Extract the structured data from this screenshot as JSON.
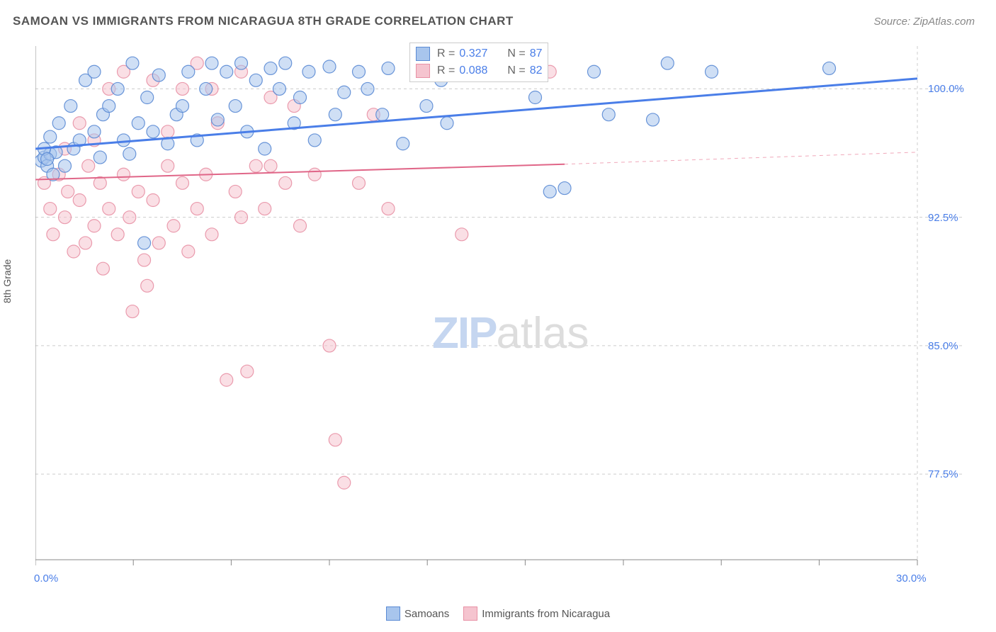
{
  "title": "SAMOAN VS IMMIGRANTS FROM NICARAGUA 8TH GRADE CORRELATION CHART",
  "source": "Source: ZipAtlas.com",
  "y_axis_label": "8th Grade",
  "watermark_zip": "ZIP",
  "watermark_atlas": "atlas",
  "chart": {
    "type": "scatter",
    "xlim": [
      0,
      30
    ],
    "ylim": [
      72.5,
      102.5
    ],
    "x_min_label": "0.0%",
    "x_max_label": "30.0%",
    "y_grid_values": [
      77.5,
      85.0,
      92.5,
      100.0
    ],
    "y_grid_labels": [
      "77.5%",
      "85.0%",
      "92.5%",
      "100.0%"
    ],
    "x_tick_positions": [
      0,
      3.33,
      6.66,
      10,
      13.33,
      16.66,
      20,
      23.33,
      26.66,
      30
    ],
    "background_color": "#ffffff",
    "grid_color": "#cccccc",
    "axis_color": "#888888",
    "marker_radius": 9,
    "marker_opacity": 0.55,
    "series": [
      {
        "name": "Samoans",
        "fill": "#a8c5ed",
        "stroke": "#5a8ad4",
        "regression": {
          "x1": 0,
          "y1": 96.5,
          "x2": 30,
          "y2": 100.6,
          "stroke": "#4a7ee8",
          "width": 3
        },
        "R": "0.327",
        "N": "87",
        "points": [
          [
            0.2,
            95.8
          ],
          [
            0.3,
            96.0
          ],
          [
            0.4,
            95.5
          ],
          [
            0.5,
            96.2
          ],
          [
            0.6,
            95.0
          ],
          [
            0.7,
            96.3
          ],
          [
            0.3,
            96.5
          ],
          [
            0.4,
            95.9
          ],
          [
            0.5,
            97.2
          ],
          [
            0.8,
            98.0
          ],
          [
            1.0,
            95.5
          ],
          [
            1.2,
            99.0
          ],
          [
            1.3,
            96.5
          ],
          [
            1.5,
            97.0
          ],
          [
            1.7,
            100.5
          ],
          [
            2.0,
            97.5
          ],
          [
            2.0,
            101.0
          ],
          [
            2.2,
            96.0
          ],
          [
            2.3,
            98.5
          ],
          [
            2.5,
            99.0
          ],
          [
            2.8,
            100.0
          ],
          [
            3.0,
            97.0
          ],
          [
            3.2,
            96.2
          ],
          [
            3.3,
            101.5
          ],
          [
            3.5,
            98.0
          ],
          [
            3.7,
            91.0
          ],
          [
            3.8,
            99.5
          ],
          [
            4.0,
            97.5
          ],
          [
            4.2,
            100.8
          ],
          [
            4.5,
            96.8
          ],
          [
            4.8,
            98.5
          ],
          [
            5.0,
            99.0
          ],
          [
            5.2,
            101.0
          ],
          [
            5.5,
            97.0
          ],
          [
            5.8,
            100.0
          ],
          [
            6.0,
            101.5
          ],
          [
            6.2,
            98.2
          ],
          [
            6.5,
            101.0
          ],
          [
            6.8,
            99.0
          ],
          [
            7.0,
            101.5
          ],
          [
            7.2,
            97.5
          ],
          [
            7.5,
            100.5
          ],
          [
            7.8,
            96.5
          ],
          [
            8.0,
            101.2
          ],
          [
            8.3,
            100.0
          ],
          [
            8.5,
            101.5
          ],
          [
            8.8,
            98.0
          ],
          [
            9.0,
            99.5
          ],
          [
            9.3,
            101.0
          ],
          [
            9.5,
            97.0
          ],
          [
            10.0,
            101.3
          ],
          [
            10.2,
            98.5
          ],
          [
            10.5,
            99.8
          ],
          [
            11.0,
            101.0
          ],
          [
            11.3,
            100.0
          ],
          [
            11.8,
            98.5
          ],
          [
            12.0,
            101.2
          ],
          [
            12.5,
            96.8
          ],
          [
            13.0,
            101.0
          ],
          [
            13.3,
            99.0
          ],
          [
            13.8,
            100.5
          ],
          [
            14.0,
            98.0
          ],
          [
            17.0,
            99.5
          ],
          [
            17.5,
            94.0
          ],
          [
            18.0,
            94.2
          ],
          [
            19.0,
            101.0
          ],
          [
            19.5,
            98.5
          ],
          [
            21.0,
            98.2
          ],
          [
            21.5,
            101.5
          ],
          [
            23.0,
            101.0
          ],
          [
            27.0,
            101.2
          ]
        ]
      },
      {
        "name": "Immigrants from Nicaragua",
        "fill": "#f5c4cf",
        "stroke": "#e891a5",
        "regression": {
          "x1": 0,
          "y1": 94.7,
          "x2": 18,
          "y2": 95.6,
          "stroke": "#e06688",
          "width": 2
        },
        "regression_extend": {
          "x1": 18,
          "y1": 95.6,
          "x2": 30,
          "y2": 96.3,
          "stroke": "#f0a8ba",
          "width": 1,
          "dash": "5,5"
        },
        "R": "0.088",
        "N": "82",
        "points": [
          [
            0.3,
            94.5
          ],
          [
            0.5,
            93.0
          ],
          [
            0.6,
            91.5
          ],
          [
            0.8,
            95.0
          ],
          [
            1.0,
            92.5
          ],
          [
            1.1,
            94.0
          ],
          [
            1.3,
            90.5
          ],
          [
            1.5,
            93.5
          ],
          [
            1.7,
            91.0
          ],
          [
            1.8,
            95.5
          ],
          [
            2.0,
            92.0
          ],
          [
            2.2,
            94.5
          ],
          [
            2.3,
            89.5
          ],
          [
            2.5,
            93.0
          ],
          [
            2.8,
            91.5
          ],
          [
            3.0,
            95.0
          ],
          [
            3.2,
            92.5
          ],
          [
            3.3,
            87.0
          ],
          [
            3.5,
            94.0
          ],
          [
            3.7,
            90.0
          ],
          [
            3.8,
            88.5
          ],
          [
            4.0,
            93.5
          ],
          [
            4.2,
            91.0
          ],
          [
            4.5,
            95.5
          ],
          [
            4.7,
            92.0
          ],
          [
            5.0,
            94.5
          ],
          [
            5.2,
            90.5
          ],
          [
            5.5,
            93.0
          ],
          [
            5.8,
            95.0
          ],
          [
            6.0,
            91.5
          ],
          [
            6.2,
            98.0
          ],
          [
            6.5,
            83.0
          ],
          [
            6.8,
            94.0
          ],
          [
            7.0,
            92.5
          ],
          [
            7.2,
            83.5
          ],
          [
            7.5,
            95.5
          ],
          [
            7.8,
            93.0
          ],
          [
            8.0,
            99.5
          ],
          [
            8.5,
            94.5
          ],
          [
            8.8,
            99.0
          ],
          [
            9.0,
            92.0
          ],
          [
            9.5,
            95.0
          ],
          [
            10.0,
            85.0
          ],
          [
            10.2,
            79.5
          ],
          [
            10.5,
            77.0
          ],
          [
            11.0,
            94.5
          ],
          [
            11.5,
            98.5
          ],
          [
            12.0,
            93.0
          ],
          [
            14.5,
            91.5
          ],
          [
            17.5,
            101.0
          ],
          [
            1.0,
            96.5
          ],
          [
            1.5,
            98.0
          ],
          [
            2.0,
            97.0
          ],
          [
            2.5,
            100.0
          ],
          [
            3.0,
            101.0
          ],
          [
            4.0,
            100.5
          ],
          [
            4.5,
            97.5
          ],
          [
            5.0,
            100.0
          ],
          [
            5.5,
            101.5
          ],
          [
            6.0,
            100.0
          ],
          [
            7.0,
            101.0
          ],
          [
            8.0,
            95.5
          ]
        ]
      }
    ]
  },
  "legend_top": [
    {
      "swatch_fill": "#a8c5ed",
      "swatch_stroke": "#5a8ad4",
      "R_label": "R =",
      "R": "0.327",
      "N_label": "N =",
      "N": "87"
    },
    {
      "swatch_fill": "#f5c4cf",
      "swatch_stroke": "#e891a5",
      "R_label": "R =",
      "R": "0.088",
      "N_label": "N =",
      "N": "82"
    }
  ],
  "legend_bottom": [
    {
      "swatch_fill": "#a8c5ed",
      "swatch_stroke": "#5a8ad4",
      "label": "Samoans"
    },
    {
      "swatch_fill": "#f5c4cf",
      "swatch_stroke": "#e891a5",
      "label": "Immigrants from Nicaragua"
    }
  ]
}
